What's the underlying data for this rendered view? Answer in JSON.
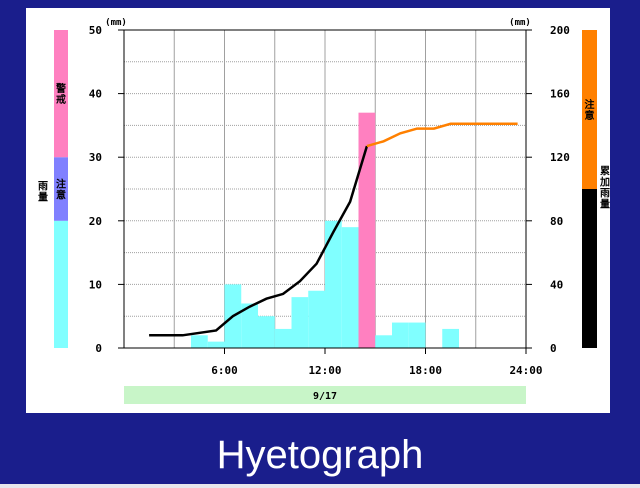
{
  "caption": "Hyetograph",
  "colors": {
    "bar_normal": "#80ffff",
    "bar_highlight": "#ff80c0",
    "line_before": "#000000",
    "line_after": "#ff8000",
    "band_warning": "#ff80c0",
    "band_caution": "#8080ff",
    "band_normal": "#80ffff",
    "right_band_caution": "#ff8000",
    "right_band_normal": "#000000",
    "date_bar": "#c8f5c8"
  },
  "chart_data": {
    "type": "bar",
    "left_axis": {
      "unit": "(mm)",
      "range": [
        0,
        50
      ],
      "ticks": [
        0,
        10,
        20,
        30,
        40,
        50
      ]
    },
    "right_axis": {
      "unit": "(mm)",
      "range": [
        0,
        200
      ],
      "ticks": [
        0,
        40,
        80,
        120,
        160,
        200
      ]
    },
    "x_axis": {
      "range": [
        0,
        24
      ],
      "ticks": [
        6,
        12,
        18,
        24
      ],
      "tick_labels": [
        "6:00",
        "12:00",
        "18:00",
        "24:00"
      ],
      "date_label": "9/17"
    },
    "left_band": {
      "label": "雨量",
      "segments": [
        {
          "label": "",
          "from": 0,
          "to": 20,
          "color": "#80ffff"
        },
        {
          "label": "注意",
          "from": 20,
          "to": 30,
          "color": "#8080ff"
        },
        {
          "label": "警戒",
          "from": 30,
          "to": 50,
          "color": "#ff80c0"
        }
      ]
    },
    "right_band": {
      "label": "累加雨量",
      "segments": [
        {
          "label": "",
          "from": 0,
          "to": 100,
          "color": "#000000"
        },
        {
          "label": "注意",
          "from": 100,
          "to": 200,
          "color": "#ff8000"
        }
      ]
    },
    "hourly_rainfall": [
      {
        "hour": 4,
        "value": 2
      },
      {
        "hour": 5,
        "value": 1
      },
      {
        "hour": 6,
        "value": 10
      },
      {
        "hour": 7,
        "value": 7
      },
      {
        "hour": 8,
        "value": 5
      },
      {
        "hour": 9,
        "value": 3
      },
      {
        "hour": 10,
        "value": 8
      },
      {
        "hour": 11,
        "value": 9
      },
      {
        "hour": 12,
        "value": 20
      },
      {
        "hour": 13,
        "value": 19
      },
      {
        "hour": 14,
        "value": 37,
        "highlight": true
      },
      {
        "hour": 15,
        "value": 2
      },
      {
        "hour": 16,
        "value": 4
      },
      {
        "hour": 17,
        "value": 4
      },
      {
        "hour": 19,
        "value": 3
      }
    ],
    "cumulative_observed": [
      [
        1.5,
        8
      ],
      [
        3.5,
        8
      ],
      [
        5.5,
        11
      ],
      [
        6.5,
        20
      ],
      [
        7.5,
        26
      ],
      [
        8.5,
        31
      ],
      [
        9.5,
        34
      ],
      [
        10.5,
        42
      ],
      [
        11.5,
        53
      ],
      [
        12.5,
        73
      ],
      [
        13.5,
        92
      ],
      [
        14.5,
        127
      ]
    ],
    "cumulative_forecast": [
      [
        14.5,
        127
      ],
      [
        15.5,
        130
      ],
      [
        16.5,
        135
      ],
      [
        17.5,
        138
      ],
      [
        18.5,
        138
      ],
      [
        19.5,
        141
      ],
      [
        20.5,
        141
      ],
      [
        21.5,
        141
      ],
      [
        22.5,
        141
      ],
      [
        23.5,
        141
      ]
    ]
  }
}
